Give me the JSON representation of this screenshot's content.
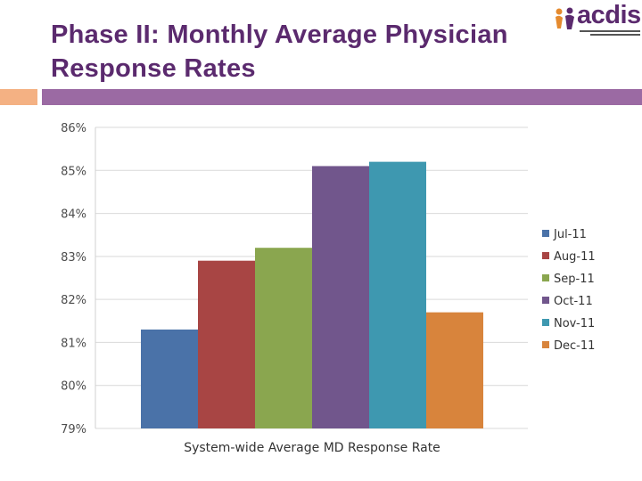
{
  "slide": {
    "title": "Phase II: Monthly Average Physician Response Rates",
    "logo_text": "acdis",
    "colors": {
      "title": "#5b2a6e",
      "bar": "#9b6aa3",
      "accent": "#f4b183"
    }
  },
  "chart_data": {
    "type": "bar",
    "title": "",
    "xlabel": "System-wide Average MD Response Rate",
    "ylabel": "",
    "ylim": [
      79,
      86
    ],
    "yticks": [
      "79%",
      "80%",
      "81%",
      "82%",
      "83%",
      "84%",
      "85%",
      "86%"
    ],
    "grid": true,
    "legend_position": "right",
    "categories": [
      "System-wide Average MD Response Rate"
    ],
    "series": [
      {
        "name": "Jul-11",
        "values": [
          81.3
        ],
        "color": "#4a72a8"
      },
      {
        "name": "Aug-11",
        "values": [
          82.9
        ],
        "color": "#a84544"
      },
      {
        "name": "Sep-11",
        "values": [
          83.2
        ],
        "color": "#8aa64f"
      },
      {
        "name": "Oct-11",
        "values": [
          85.1
        ],
        "color": "#71568c"
      },
      {
        "name": "Nov-11",
        "values": [
          85.2
        ],
        "color": "#3e98b0"
      },
      {
        "name": "Dec-11",
        "values": [
          81.7
        ],
        "color": "#d8843c"
      }
    ]
  }
}
